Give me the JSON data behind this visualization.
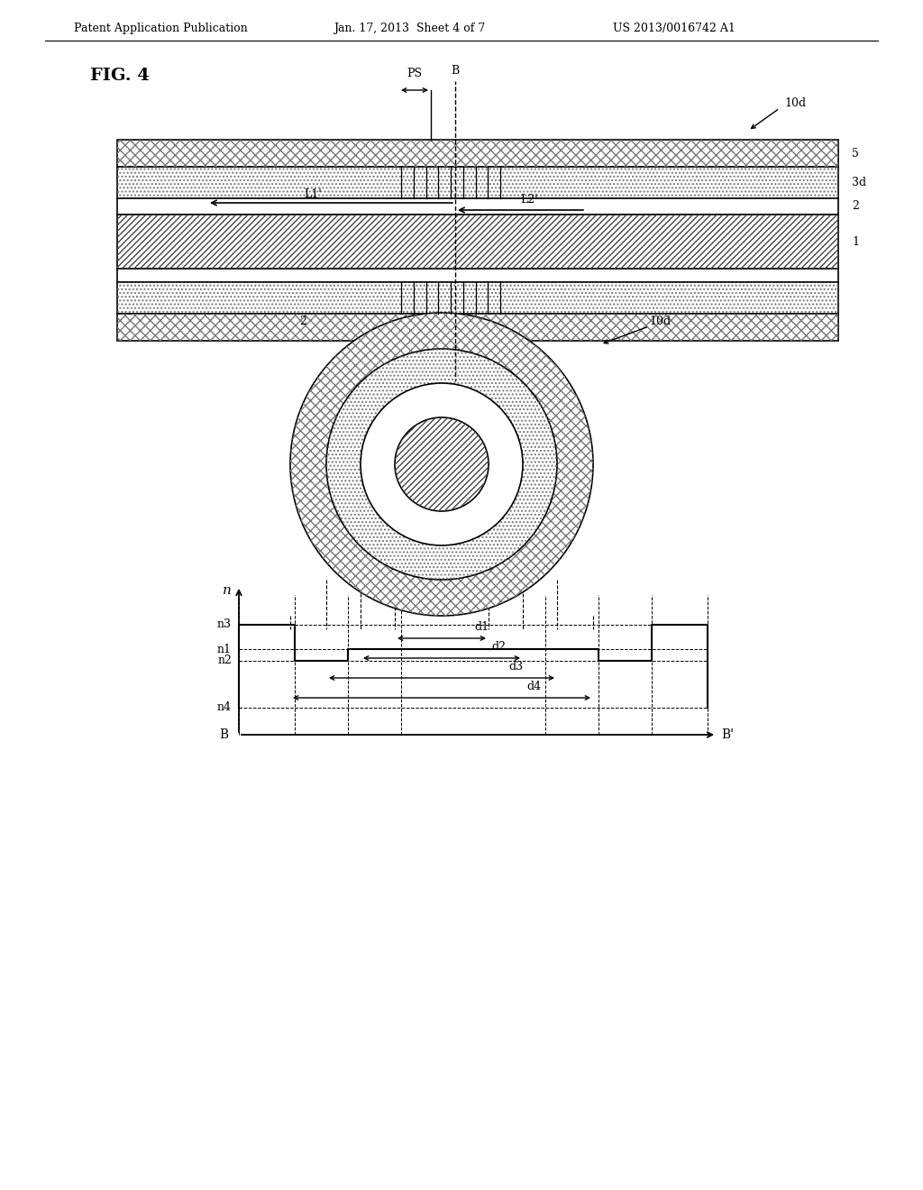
{
  "header_left": "Patent Application Publication",
  "header_mid": "Jan. 17, 2013  Sheet 4 of 7",
  "header_right": "US 2013/0016742 A1",
  "fig_label": "FIG. 4",
  "bg_color": "#ffffff",
  "line_color": "#000000"
}
